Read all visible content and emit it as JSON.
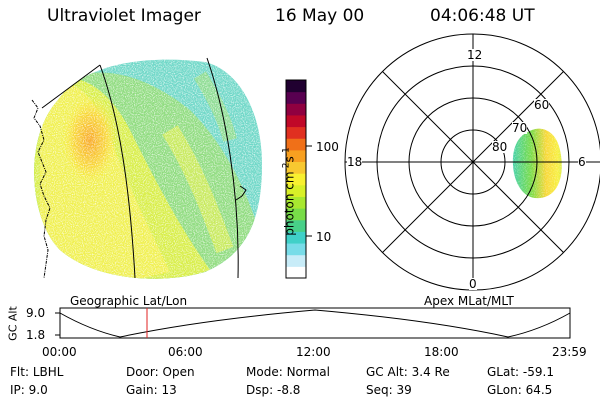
{
  "header": {
    "instrument": "Ultraviolet Imager",
    "date": "16 May 00",
    "time": "04:06:48 UT"
  },
  "colorbar": {
    "label": "photon cm",
    "label_sup1": "-2",
    "label_s": "s",
    "label_sup2": "-1",
    "tick_high": "100",
    "tick_low": "10",
    "colors": [
      "#ffffff",
      "#c8ecf8",
      "#78dce8",
      "#40d0c8",
      "#48d088",
      "#78dc48",
      "#a8e830",
      "#d8f028",
      "#f8f030",
      "#f8c830",
      "#f8a020",
      "#f07018",
      "#e03020",
      "#c00828",
      "#900040",
      "#580050",
      "#200030"
    ]
  },
  "geo_panel": {
    "label": "Geographic Lat/Lon"
  },
  "polar_panel": {
    "label": "Apex MLat/MLT",
    "mlt_top": "12",
    "mlt_left": "18",
    "mlt_right": "6",
    "mlt_bottom": "0",
    "lat_60": "60",
    "lat_70": "70",
    "lat_80": "80"
  },
  "altitude_plot": {
    "ylabel": "GC Alt",
    "ytick_high": "9.0",
    "ytick_low": "1.8",
    "xticks": [
      "00:00",
      "06:00",
      "12:00",
      "18:00",
      "23:59"
    ],
    "marker_time": "04:06:48"
  },
  "status": {
    "row1": [
      {
        "key": "Flt:",
        "value": "LBHL"
      },
      {
        "key": "Door:",
        "value": "Open"
      },
      {
        "key": "Mode:",
        "value": "Normal"
      },
      {
        "key": "GC Alt:",
        "value": "3.4 Re"
      },
      {
        "key": "GLat:",
        "value": "-59.1"
      }
    ],
    "row2": [
      {
        "key": "IP:",
        "value": "9.0"
      },
      {
        "key": "Gain:",
        "value": "13"
      },
      {
        "key": "Dsp:",
        "value": "-8.8"
      },
      {
        "key": "Seq:",
        "value": "39"
      },
      {
        "key": "GLon:",
        "value": "64.5"
      }
    ]
  }
}
